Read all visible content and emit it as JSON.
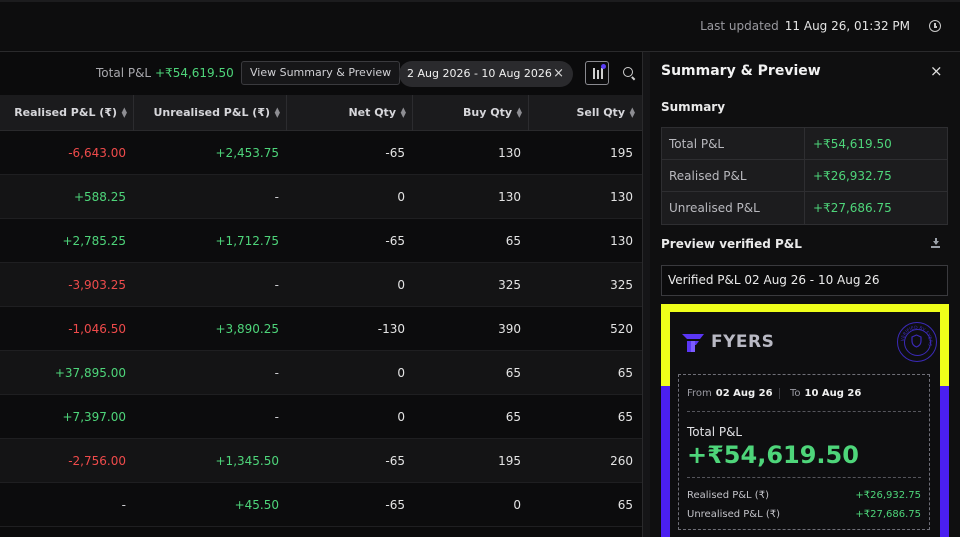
{
  "header": {
    "last_updated_label": "Last updated",
    "last_updated_value": "11 Aug 26, 01:32 PM"
  },
  "toolbar": {
    "total_pl_label": "Total P&L",
    "total_pl_value": "+₹54,619.50",
    "view_summary_label": "View Summary & Preview",
    "date_range": "2 Aug 2026 - 10 Aug 2026",
    "date_clear": "×"
  },
  "table": {
    "columns": [
      "Realised P&L (₹)",
      "Unrealised P&L (₹)",
      "Net Qty",
      "Buy Qty",
      "Sell Qty"
    ],
    "rows": [
      {
        "realised": "-6,643.00",
        "unrealised": "+2,453.75",
        "net": "-65",
        "buy": "130",
        "sell": "195"
      },
      {
        "realised": "+588.25",
        "unrealised": "-",
        "net": "0",
        "buy": "130",
        "sell": "130"
      },
      {
        "realised": "+2,785.25",
        "unrealised": "+1,712.75",
        "net": "-65",
        "buy": "65",
        "sell": "130"
      },
      {
        "realised": "-3,903.25",
        "unrealised": "-",
        "net": "0",
        "buy": "325",
        "sell": "325"
      },
      {
        "realised": "-1,046.50",
        "unrealised": "+3,890.25",
        "net": "-130",
        "buy": "390",
        "sell": "520"
      },
      {
        "realised": "+37,895.00",
        "unrealised": "-",
        "net": "0",
        "buy": "65",
        "sell": "65"
      },
      {
        "realised": "+7,397.00",
        "unrealised": "-",
        "net": "0",
        "buy": "65",
        "sell": "65"
      },
      {
        "realised": "-2,756.00",
        "unrealised": "+1,345.50",
        "net": "-65",
        "buy": "195",
        "sell": "260"
      },
      {
        "realised": "-",
        "unrealised": "+45.50",
        "net": "-65",
        "buy": "0",
        "sell": "65"
      }
    ]
  },
  "panel": {
    "title": "Summary & Preview",
    "close": "×",
    "summary_title": "Summary",
    "summary": [
      {
        "label": "Total P&L",
        "value": "+₹54,619.50"
      },
      {
        "label": "Realised P&L",
        "value": "+₹26,932.75"
      },
      {
        "label": "Unrealised P&L",
        "value": "+₹27,686.75"
      }
    ],
    "preview_title": "Preview verified P&L",
    "preview_select": "Verified P&L 02 Aug 26 - 10 Aug 26"
  },
  "card": {
    "brand": "FYERS",
    "from_label": "From",
    "from_value": "02 Aug 26",
    "to_label": "To",
    "to_value": "10 Aug 26",
    "total_label": "Total P&L",
    "total_value": "+₹54,619.50",
    "realised_label": "Realised P&L (₹)",
    "realised_value": "+₹26,932.75",
    "unrealised_label": "Unrealised P&L (₹)",
    "unrealised_value": "+₹27,686.75",
    "seal_text": "VERIFIED BY FYERS"
  },
  "colors": {
    "positive": "#4ed57a",
    "negative": "#ef4b4b",
    "card_yellow": "#efff1a",
    "card_purple": "#4b1ff0"
  }
}
